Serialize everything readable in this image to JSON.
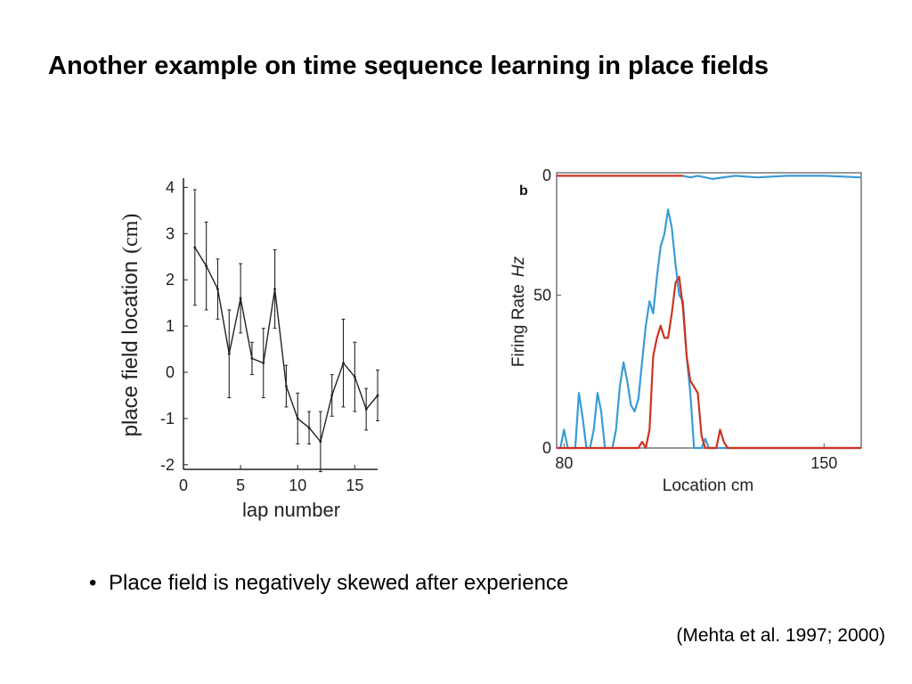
{
  "slide": {
    "title": "Another example on time sequence learning in  place fields",
    "bullet": "Place field is negatively skewed after experience",
    "citation": "(Mehta et al. 1997; 2000)"
  },
  "chart_data": [
    {
      "type": "line",
      "title": "",
      "xlabel": "lap number",
      "ylabel": "place field  location",
      "ylabel_unit": "(cm)",
      "xlim": [
        0,
        17
      ],
      "ylim": [
        -2.1,
        4.2
      ],
      "xticks": [
        0,
        5,
        10,
        15
      ],
      "yticks": [
        4,
        3,
        2,
        1,
        0,
        -1,
        -2
      ],
      "grid": false,
      "color": "#222222",
      "series": [
        {
          "x": [
            1,
            2,
            3,
            4,
            5,
            6,
            7,
            8,
            9,
            10,
            11,
            12,
            13,
            14,
            15,
            16,
            17
          ],
          "y": [
            2.7,
            2.3,
            1.8,
            0.4,
            1.6,
            0.3,
            0.2,
            1.8,
            -0.3,
            -1.0,
            -1.2,
            -1.5,
            -0.5,
            0.2,
            -0.1,
            -0.8,
            -0.5
          ],
          "err": [
            1.25,
            0.95,
            0.65,
            0.95,
            0.75,
            0.35,
            0.75,
            0.85,
            0.45,
            0.55,
            0.35,
            0.65,
            0.45,
            0.95,
            0.75,
            0.45,
            0.55
          ]
        }
      ]
    },
    {
      "type": "line",
      "panel_label": "b",
      "title": "",
      "xlabel": "Location cm",
      "ylabel": "Firing Rate",
      "ylabel_unit": "Hz",
      "xlim": [
        78,
        160
      ],
      "ylim": [
        0,
        90
      ],
      "xticks": [
        80,
        150
      ],
      "yticks": [
        0,
        50
      ],
      "y_top_label": "0",
      "grid": false,
      "series": [
        {
          "color": "#3a9bd5",
          "x": [
            78,
            79,
            80,
            81,
            82,
            83,
            84,
            85,
            86,
            87,
            88,
            89,
            90,
            91,
            92,
            93,
            94,
            95,
            96,
            97,
            98,
            99,
            100,
            101,
            102,
            103,
            104,
            105,
            106,
            107,
            108,
            109,
            110,
            111,
            112,
            113,
            114,
            115,
            116,
            117,
            118,
            119,
            120,
            121,
            122,
            123,
            124,
            160
          ],
          "y": [
            0,
            0,
            6,
            0,
            0,
            0,
            18,
            10,
            0,
            0,
            6,
            18,
            12,
            0,
            0,
            0,
            6,
            20,
            28,
            22,
            14,
            12,
            16,
            28,
            40,
            48,
            44,
            56,
            66,
            70,
            78,
            72,
            60,
            50,
            48,
            30,
            18,
            0,
            0,
            0,
            3,
            0,
            0,
            0,
            0,
            0,
            0,
            0
          ]
        },
        {
          "color": "#cc3322",
          "x": [
            78,
            100,
            101,
            102,
            103,
            104,
            105,
            106,
            107,
            108,
            109,
            110,
            111,
            112,
            113,
            114,
            115,
            116,
            117,
            118,
            119,
            120,
            121,
            122,
            123,
            124,
            160
          ],
          "y": [
            0,
            0,
            2,
            0,
            6,
            30,
            36,
            40,
            36,
            36,
            44,
            54,
            56,
            46,
            30,
            22,
            20,
            18,
            4,
            0,
            0,
            0,
            0,
            6,
            2,
            0,
            0
          ]
        },
        {
          "color": "#cc3322",
          "x": [
            78,
            100,
            102,
            104,
            106,
            108,
            110,
            112
          ],
          "y": [
            89,
            89,
            89,
            89,
            89,
            89,
            89,
            89
          ]
        },
        {
          "color": "#3a9bd5",
          "x": [
            112,
            114,
            116,
            120,
            126,
            132,
            140,
            150,
            160
          ],
          "y": [
            89,
            88.5,
            89,
            88,
            89,
            88.5,
            89,
            89,
            88.5
          ]
        }
      ]
    }
  ]
}
